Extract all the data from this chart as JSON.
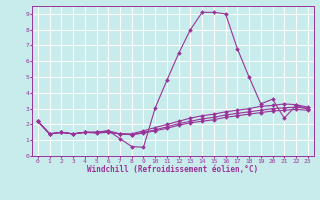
{
  "background_color": "#c8ecec",
  "grid_color": "#ffffff",
  "line_color": "#993399",
  "xlabel": "Windchill (Refroidissement éolien,°C)",
  "xlim": [
    -0.5,
    23.5
  ],
  "ylim": [
    0,
    9.5
  ],
  "xticks": [
    0,
    1,
    2,
    3,
    4,
    5,
    6,
    7,
    8,
    9,
    10,
    11,
    12,
    13,
    14,
    15,
    16,
    17,
    18,
    19,
    20,
    21,
    22,
    23
  ],
  "yticks": [
    0,
    1,
    2,
    3,
    4,
    5,
    6,
    7,
    8,
    9
  ],
  "line1_x": [
    0,
    1,
    2,
    3,
    4,
    5,
    6,
    7,
    8,
    9,
    10,
    11,
    12,
    13,
    14,
    15,
    16,
    17,
    18,
    19,
    20,
    21,
    22,
    23
  ],
  "line1_y": [
    2.2,
    1.4,
    1.5,
    1.4,
    1.5,
    1.5,
    1.6,
    1.1,
    0.6,
    0.55,
    3.05,
    4.8,
    6.5,
    8.0,
    9.1,
    9.1,
    9.0,
    6.8,
    5.0,
    3.3,
    3.6,
    2.4,
    3.2,
    3.0
  ],
  "line2_x": [
    0,
    1,
    2,
    3,
    4,
    5,
    6,
    7,
    8,
    9,
    10,
    11,
    12,
    13,
    14,
    15,
    16,
    17,
    18,
    19,
    20,
    21,
    22,
    23
  ],
  "line2_y": [
    2.2,
    1.4,
    1.5,
    1.4,
    1.5,
    1.5,
    1.6,
    1.4,
    1.4,
    1.6,
    1.8,
    2.0,
    2.2,
    2.4,
    2.55,
    2.65,
    2.8,
    2.9,
    3.0,
    3.15,
    3.2,
    3.3,
    3.25,
    3.1
  ],
  "line3_x": [
    0,
    1,
    2,
    3,
    4,
    5,
    6,
    7,
    8,
    9,
    10,
    11,
    12,
    13,
    14,
    15,
    16,
    17,
    18,
    19,
    20,
    21,
    22,
    23
  ],
  "line3_y": [
    2.2,
    1.4,
    1.5,
    1.4,
    1.5,
    1.5,
    1.5,
    1.4,
    1.35,
    1.5,
    1.65,
    1.85,
    2.05,
    2.2,
    2.35,
    2.45,
    2.6,
    2.7,
    2.8,
    2.9,
    3.0,
    3.05,
    3.1,
    3.0
  ],
  "line4_x": [
    0,
    1,
    2,
    3,
    4,
    5,
    6,
    7,
    8,
    9,
    10,
    11,
    12,
    13,
    14,
    15,
    16,
    17,
    18,
    19,
    20,
    21,
    22,
    23
  ],
  "line4_y": [
    2.2,
    1.4,
    1.5,
    1.4,
    1.5,
    1.45,
    1.5,
    1.4,
    1.35,
    1.45,
    1.6,
    1.75,
    1.95,
    2.1,
    2.2,
    2.3,
    2.45,
    2.55,
    2.65,
    2.75,
    2.85,
    2.9,
    2.95,
    2.9
  ],
  "marker": "D",
  "markersize": 2.0,
  "linewidth": 0.8,
  "tick_fontsize": 4.5,
  "xlabel_fontsize": 5.5,
  "xlabel_fontweight": "bold"
}
